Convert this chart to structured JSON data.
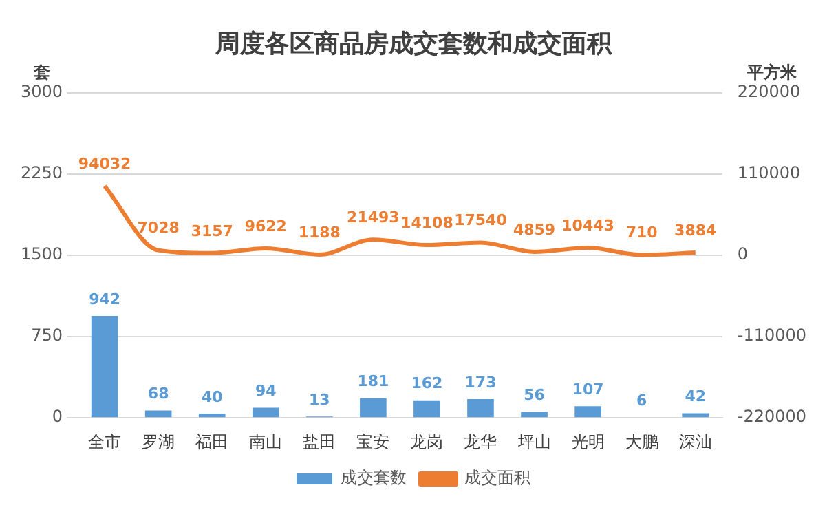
{
  "chart_data": {
    "type": "bar",
    "title": "周度各区商品房成交套数和成交面积",
    "ylabel": "套",
    "y2label": "平方米",
    "categories": [
      "全市",
      "罗湖",
      "福田",
      "南山",
      "盐田",
      "宝安",
      "龙岗",
      "龙华",
      "坪山",
      "光明",
      "大鹏",
      "深汕"
    ],
    "series": [
      {
        "name": "成交套数",
        "color": "#5b9bd5",
        "values": [
          942,
          68,
          40,
          94,
          13,
          181,
          162,
          173,
          56,
          107,
          6,
          42
        ]
      },
      {
        "name": "成交面积",
        "type": "line",
        "axis": "y2",
        "color": "#ed7d31",
        "values": [
          94032,
          7028,
          3157,
          9622,
          1188,
          21493,
          14108,
          17540,
          4859,
          10443,
          710,
          3884
        ]
      }
    ],
    "ylim": [
      0,
      3000
    ],
    "yticks": [
      0,
      750,
      1500,
      2250,
      3000
    ],
    "y2lim": [
      -220000,
      220000
    ],
    "y2ticks": [
      -220000,
      -110000,
      0,
      110000,
      220000
    ],
    "grid": "y",
    "legend": "bottom",
    "data_labels": true,
    "marker": "none",
    "line_style": "solid"
  }
}
